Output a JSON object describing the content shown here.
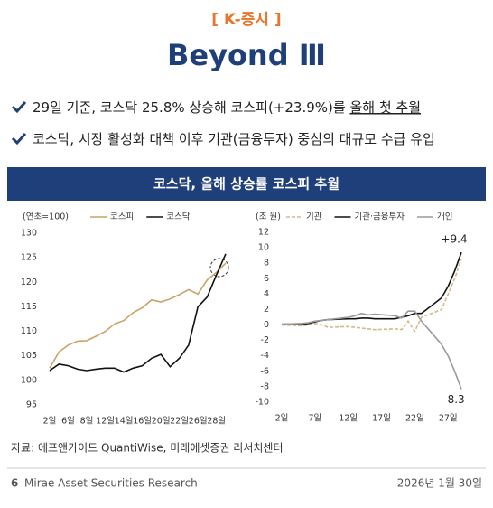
{
  "header": {
    "tag": "[ K-증시 ]",
    "title": "Beyond Ⅲ"
  },
  "bullets": [
    [
      "29일 기준, 코스닥 25.8% 상승해 코스피(+23.9%)를 ",
      "올해 첫 추월"
    ],
    [
      "코스닥, 시장 활성화 대책 이후 기관(금융투자) 중심의 대규모 수급 유입"
    ]
  ],
  "panel_title": "코스닥, 올해 상승률 코스피 추월",
  "chart_data": [
    {
      "type": "line",
      "ylabel": "(연초=100)",
      "categories": [
        "2일",
        null,
        "6일",
        null,
        "8일",
        null,
        "12일",
        null,
        "14일",
        null,
        "16일",
        null,
        "20일",
        null,
        "22일",
        null,
        "26일",
        null,
        "28일",
        null
      ],
      "ylim": [
        95,
        130
      ],
      "yticks": [
        95,
        100,
        105,
        110,
        115,
        120,
        125,
        130
      ],
      "series": [
        {
          "name": "코스피",
          "color": "#c9a467",
          "values": [
            102.5,
            105.8,
            107.2,
            108,
            108.1,
            109,
            110,
            111.5,
            112.2,
            113.8,
            114.8,
            116.4,
            116,
            116.6,
            117.5,
            118.5,
            117.6,
            120.5,
            122,
            123.9
          ]
        },
        {
          "name": "코스닥",
          "color": "#111111",
          "values": [
            102,
            103.3,
            103,
            102.3,
            102,
            102.3,
            102.5,
            102.5,
            101.7,
            102.5,
            103,
            104.5,
            105.3,
            102.8,
            104.5,
            107.2,
            115,
            117,
            121.5,
            125.8
          ]
        }
      ]
    },
    {
      "type": "line",
      "ylabel": "(조 원)",
      "x": [
        2,
        5,
        6,
        7,
        8,
        9,
        12,
        13,
        14,
        15,
        16,
        19,
        20,
        21,
        22,
        23,
        26,
        27,
        28,
        29
      ],
      "xlim": [
        2,
        29
      ],
      "xticks": [
        {
          "value": 2,
          "label": "2일"
        },
        {
          "value": 7,
          "label": "7일"
        },
        {
          "value": 12,
          "label": "12일"
        },
        {
          "value": 17,
          "label": "17일"
        },
        {
          "value": 22,
          "label": "22일"
        },
        {
          "value": 27,
          "label": "27일"
        }
      ],
      "ylim": [
        -10,
        12
      ],
      "yticks": [
        -10,
        -8,
        -6,
        -4,
        -2,
        0,
        2,
        4,
        6,
        8,
        10,
        12
      ],
      "series": [
        {
          "name": "기관",
          "color": "#d6b98a",
          "dashed": true,
          "values": [
            0,
            -0.1,
            0,
            0.2,
            0,
            -0.3,
            -0.2,
            -0.3,
            -0.4,
            -0.5,
            -0.6,
            -0.5,
            -0.6,
            0.5,
            -0.8,
            1.0,
            2,
            4,
            6,
            8.6
          ]
        },
        {
          "name": "기관·금융투자",
          "color": "#111111",
          "values": [
            0.1,
            0.1,
            0.2,
            0.4,
            0.6,
            0.7,
            0.8,
            0.8,
            0.9,
            0.9,
            0.8,
            0.8,
            1.0,
            1.2,
            1.5,
            1.5,
            3.5,
            5,
            7,
            9.4
          ],
          "value_labels": [
            null,
            null,
            null,
            null,
            null,
            null,
            null,
            null,
            null,
            null,
            null,
            null,
            null,
            null,
            null,
            null,
            null,
            null,
            null,
            "+9.4"
          ]
        },
        {
          "name": "개인",
          "color": "#9a9a9a",
          "values": [
            0.1,
            0.2,
            0.3,
            0.5,
            0.6,
            0.7,
            1.0,
            1.2,
            1.5,
            1.3,
            1.4,
            1.2,
            0.9,
            1.8,
            1.8,
            0.5,
            -2.5,
            -4,
            -6,
            -8.3
          ],
          "value_labels": [
            null,
            null,
            null,
            null,
            null,
            null,
            null,
            null,
            null,
            null,
            null,
            null,
            null,
            null,
            null,
            null,
            null,
            null,
            null,
            "-8.3"
          ]
        }
      ]
    }
  ],
  "source": "자료: 에프앤가이드 QuantiWise, 미래에셋증권 리서치센터",
  "footer": {
    "page": "6",
    "brand": "Mirae Asset Securities Research",
    "date": "2026년 1월 30일"
  }
}
